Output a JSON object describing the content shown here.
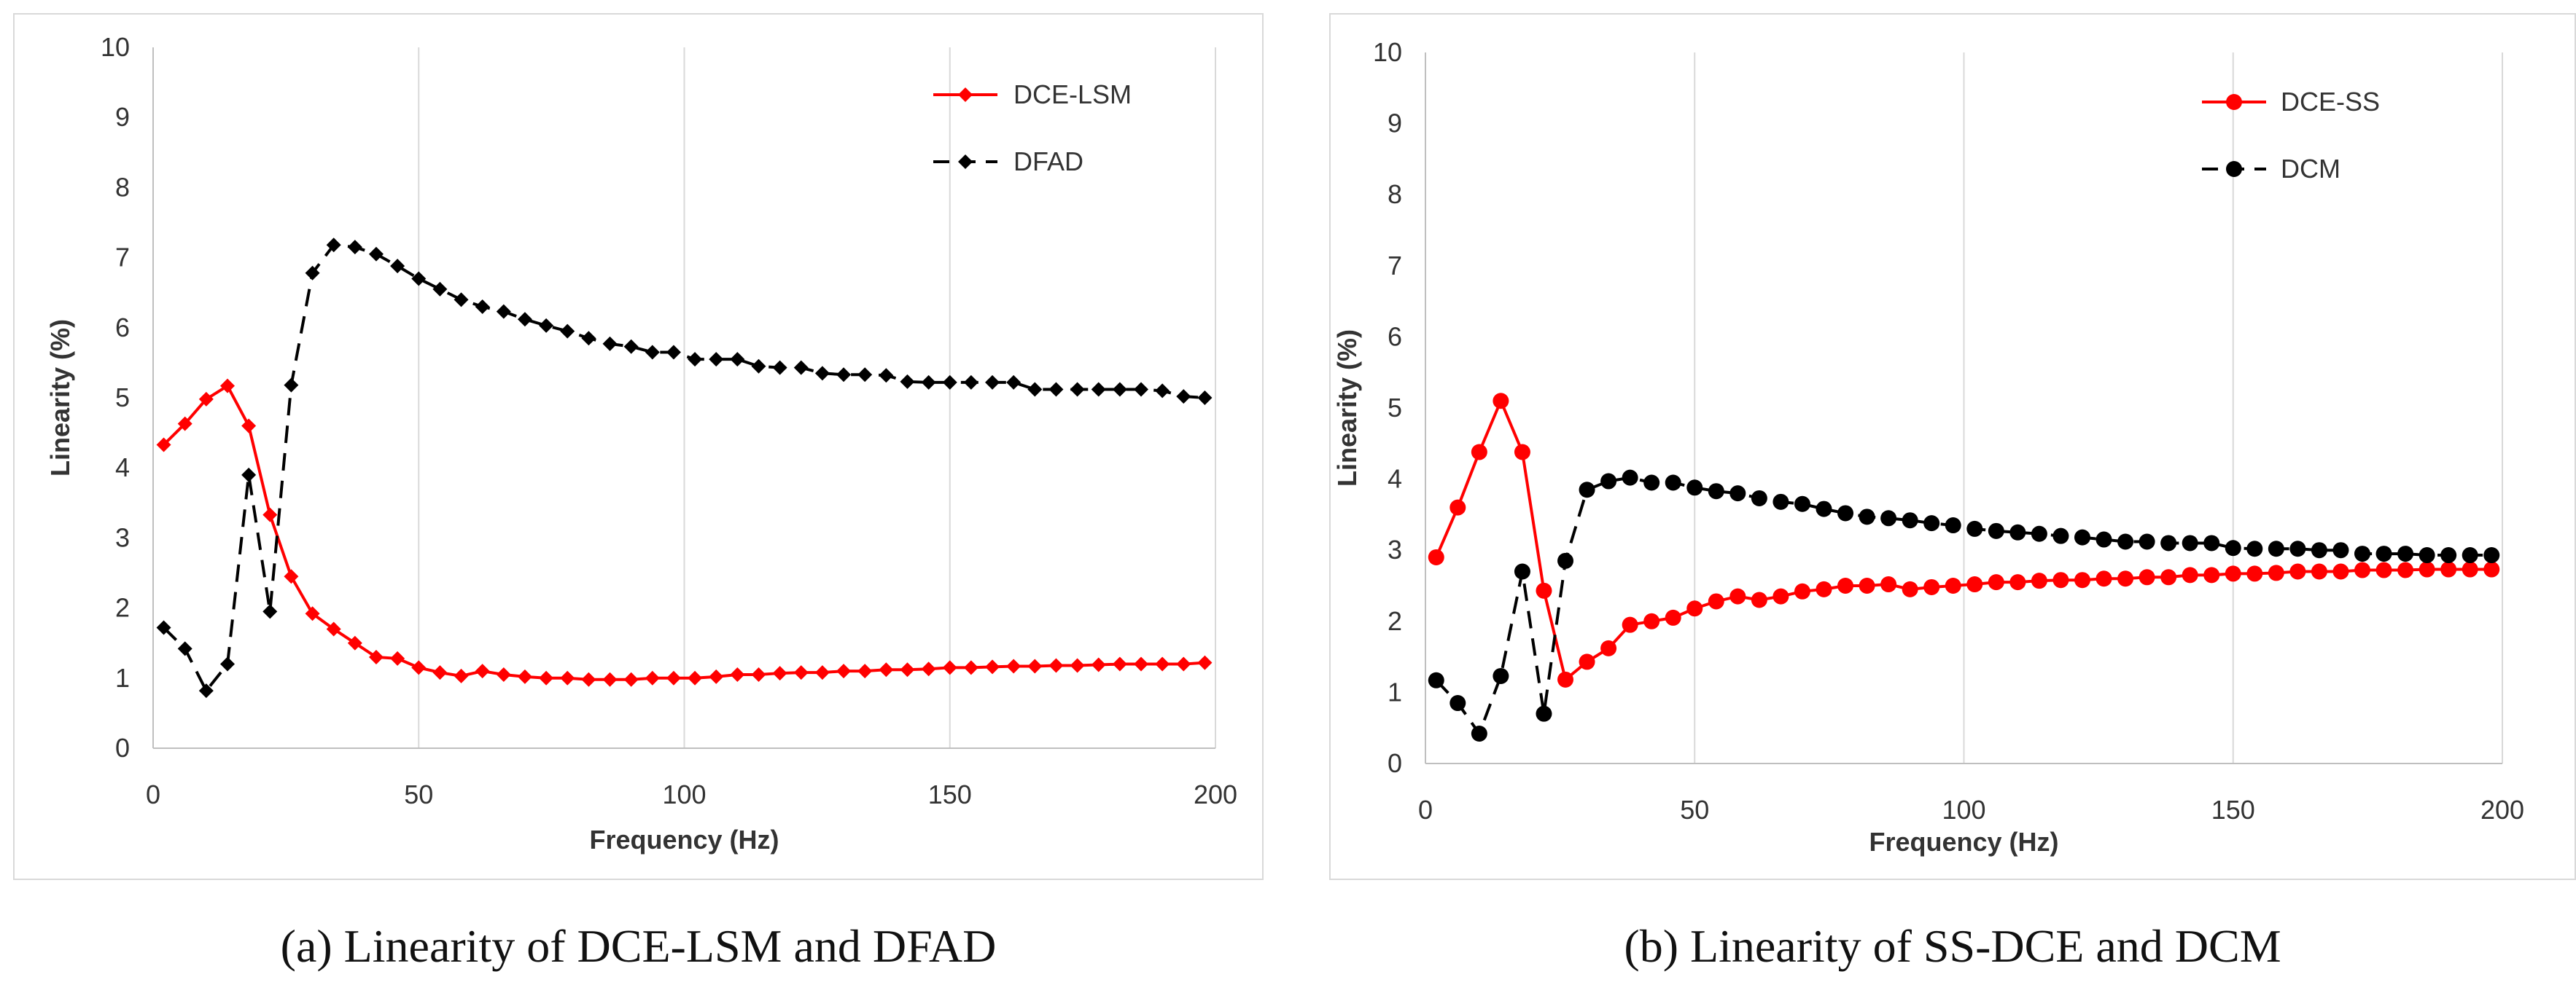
{
  "captions": {
    "a": "(a) Linearity of DCE-LSM and DFAD",
    "b": "(b) Linearity of SS-DCE and DCM"
  },
  "colors": {
    "red": "#ff0000",
    "black": "#000000",
    "grid": "#d9d9d9",
    "text": "#333333"
  },
  "chart_data": [
    {
      "type": "line",
      "title": "",
      "xlabel": "Frequency  (Hz)",
      "ylabel": "Linearity (%)",
      "xlim": [
        0,
        200
      ],
      "ylim": [
        0,
        10
      ],
      "x_ticks": [
        0,
        50,
        100,
        150,
        200
      ],
      "y_ticks": [
        0,
        1,
        2,
        3,
        4,
        5,
        6,
        7,
        8,
        9,
        10
      ],
      "grid": "vertical",
      "legend_position": "top-right",
      "marker": "diamond",
      "x": [
        2,
        6,
        10,
        14,
        18,
        22,
        26,
        30,
        34,
        38,
        42,
        46,
        50,
        54,
        58,
        62,
        66,
        70,
        74,
        78,
        82,
        86,
        90,
        94,
        98,
        102,
        106,
        110,
        114,
        118,
        122,
        126,
        130,
        134,
        138,
        142,
        146,
        150,
        154,
        158,
        162,
        166,
        170,
        174,
        178,
        182,
        186,
        190,
        194,
        198
      ],
      "series": [
        {
          "name": "DCE-LSM",
          "color": "#ff0000",
          "dash": "solid",
          "values": [
            4.33,
            4.63,
            4.98,
            5.17,
            4.6,
            3.33,
            2.45,
            1.92,
            1.7,
            1.5,
            1.3,
            1.28,
            1.15,
            1.08,
            1.03,
            1.1,
            1.05,
            1.02,
            1.0,
            1.0,
            0.98,
            0.98,
            0.98,
            1.0,
            1.0,
            1.0,
            1.02,
            1.05,
            1.05,
            1.07,
            1.08,
            1.08,
            1.1,
            1.1,
            1.12,
            1.12,
            1.13,
            1.15,
            1.15,
            1.16,
            1.17,
            1.17,
            1.18,
            1.18,
            1.19,
            1.2,
            1.2,
            1.2,
            1.2,
            1.22
          ]
        },
        {
          "name": "DFAD",
          "color": "#000000",
          "dash": "dashed",
          "values": [
            1.72,
            1.42,
            0.82,
            1.2,
            3.9,
            1.95,
            5.18,
            6.78,
            7.18,
            7.15,
            7.05,
            6.88,
            6.7,
            6.55,
            6.4,
            6.3,
            6.23,
            6.12,
            6.03,
            5.95,
            5.85,
            5.77,
            5.73,
            5.65,
            5.65,
            5.55,
            5.55,
            5.55,
            5.45,
            5.43,
            5.43,
            5.35,
            5.33,
            5.33,
            5.32,
            5.23,
            5.22,
            5.22,
            5.22,
            5.22,
            5.22,
            5.12,
            5.12,
            5.12,
            5.12,
            5.12,
            5.12,
            5.1,
            5.02,
            5.0
          ]
        }
      ]
    },
    {
      "type": "line",
      "title": "",
      "xlabel": "Frequency (Hz)",
      "ylabel": "Linearity (%)",
      "xlim": [
        0,
        200
      ],
      "ylim": [
        0,
        10
      ],
      "x_ticks": [
        0,
        50,
        100,
        150,
        200
      ],
      "y_ticks": [
        0,
        1,
        2,
        3,
        4,
        5,
        6,
        7,
        8,
        9,
        10
      ],
      "grid": "vertical",
      "legend_position": "top-right",
      "marker": "circle",
      "x": [
        2,
        6,
        10,
        14,
        18,
        22,
        26,
        30,
        34,
        38,
        42,
        46,
        50,
        54,
        58,
        62,
        66,
        70,
        74,
        78,
        82,
        86,
        90,
        94,
        98,
        102,
        106,
        110,
        114,
        118,
        122,
        126,
        130,
        134,
        138,
        142,
        146,
        150,
        154,
        158,
        162,
        166,
        170,
        174,
        178,
        182,
        186,
        190,
        194,
        198
      ],
      "series": [
        {
          "name": "DCE-SS",
          "color": "#ff0000",
          "dash": "solid",
          "values": [
            2.9,
            3.6,
            4.38,
            5.1,
            4.38,
            2.43,
            1.18,
            1.43,
            1.62,
            1.95,
            2.0,
            2.05,
            2.18,
            2.28,
            2.35,
            2.3,
            2.35,
            2.42,
            2.45,
            2.5,
            2.5,
            2.52,
            2.45,
            2.48,
            2.5,
            2.52,
            2.55,
            2.55,
            2.57,
            2.58,
            2.58,
            2.6,
            2.6,
            2.62,
            2.62,
            2.65,
            2.65,
            2.67,
            2.67,
            2.68,
            2.7,
            2.7,
            2.7,
            2.72,
            2.72,
            2.72,
            2.73,
            2.73,
            2.73,
            2.73
          ]
        },
        {
          "name": "DCM",
          "color": "#000000",
          "dash": "dashed",
          "values": [
            1.17,
            0.85,
            0.42,
            1.23,
            2.7,
            0.7,
            2.85,
            3.85,
            3.97,
            4.02,
            3.95,
            3.95,
            3.88,
            3.83,
            3.8,
            3.73,
            3.68,
            3.65,
            3.58,
            3.52,
            3.47,
            3.45,
            3.42,
            3.38,
            3.35,
            3.3,
            3.27,
            3.25,
            3.23,
            3.2,
            3.18,
            3.15,
            3.12,
            3.12,
            3.1,
            3.1,
            3.1,
            3.03,
            3.02,
            3.02,
            3.02,
            3.0,
            3.0,
            2.95,
            2.95,
            2.95,
            2.93,
            2.93,
            2.93,
            2.93
          ]
        }
      ]
    }
  ]
}
